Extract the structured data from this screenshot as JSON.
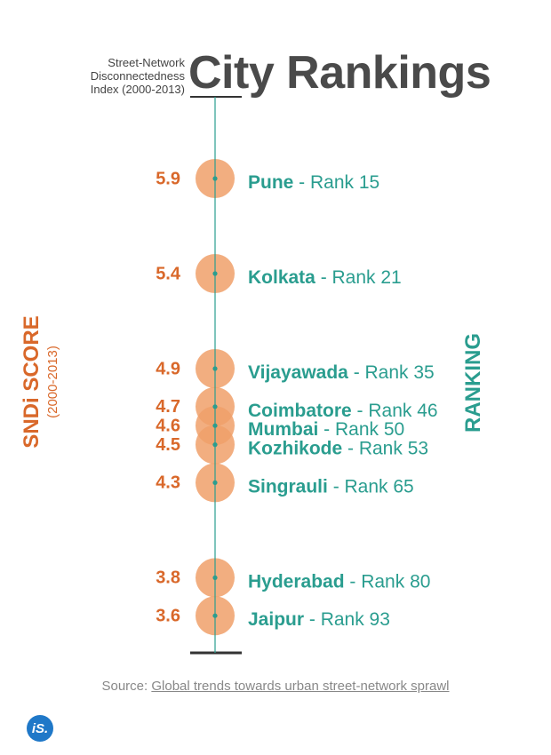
{
  "header": {
    "subtitle_line1": "Street-Network",
    "subtitle_line2": "Disconnectedness",
    "subtitle_line3": "Index (2000-2013)",
    "title": "City Rankings"
  },
  "axis_left": {
    "main": "SNDi SCORE",
    "sub": "(2000-2013)"
  },
  "axis_right": {
    "label": "RANKING"
  },
  "source": {
    "prefix": "Source: ",
    "link_text": "Global trends towards urban street-network sprawl"
  },
  "logo": {
    "text": "iS."
  },
  "colors": {
    "score": "#d9682a",
    "ranking": "#2a9d8f",
    "bubble": "#f0a06a",
    "axis": "#333333"
  },
  "chart_data": {
    "type": "scatter",
    "title": "City Rankings",
    "ylabel": "SNDi SCORE (2000-2013)",
    "y2label": "RANKING",
    "rank_separator": " - Rank ",
    "points": [
      {
        "city": "Pune",
        "score": 5.9,
        "score_label": "5.9",
        "rank": 15
      },
      {
        "city": "Kolkata",
        "score": 5.4,
        "score_label": "5.4",
        "rank": 21
      },
      {
        "city": "Vijayawada",
        "score": 4.9,
        "score_label": "4.9",
        "rank": 35
      },
      {
        "city": "Coimbatore",
        "score": 4.7,
        "score_label": "4.7",
        "rank": 46
      },
      {
        "city": "Mumbai",
        "score": 4.6,
        "score_label": "4.6",
        "rank": 50
      },
      {
        "city": "Kozhikode",
        "score": 4.5,
        "score_label": "4.5",
        "rank": 53
      },
      {
        "city": "Singrauli",
        "score": 4.3,
        "score_label": "4.3",
        "rank": 65
      },
      {
        "city": "Hyderabad",
        "score": 3.8,
        "score_label": "3.8",
        "rank": 80
      },
      {
        "city": "Jaipur",
        "score": 3.6,
        "score_label": "3.6",
        "rank": 93
      }
    ]
  }
}
